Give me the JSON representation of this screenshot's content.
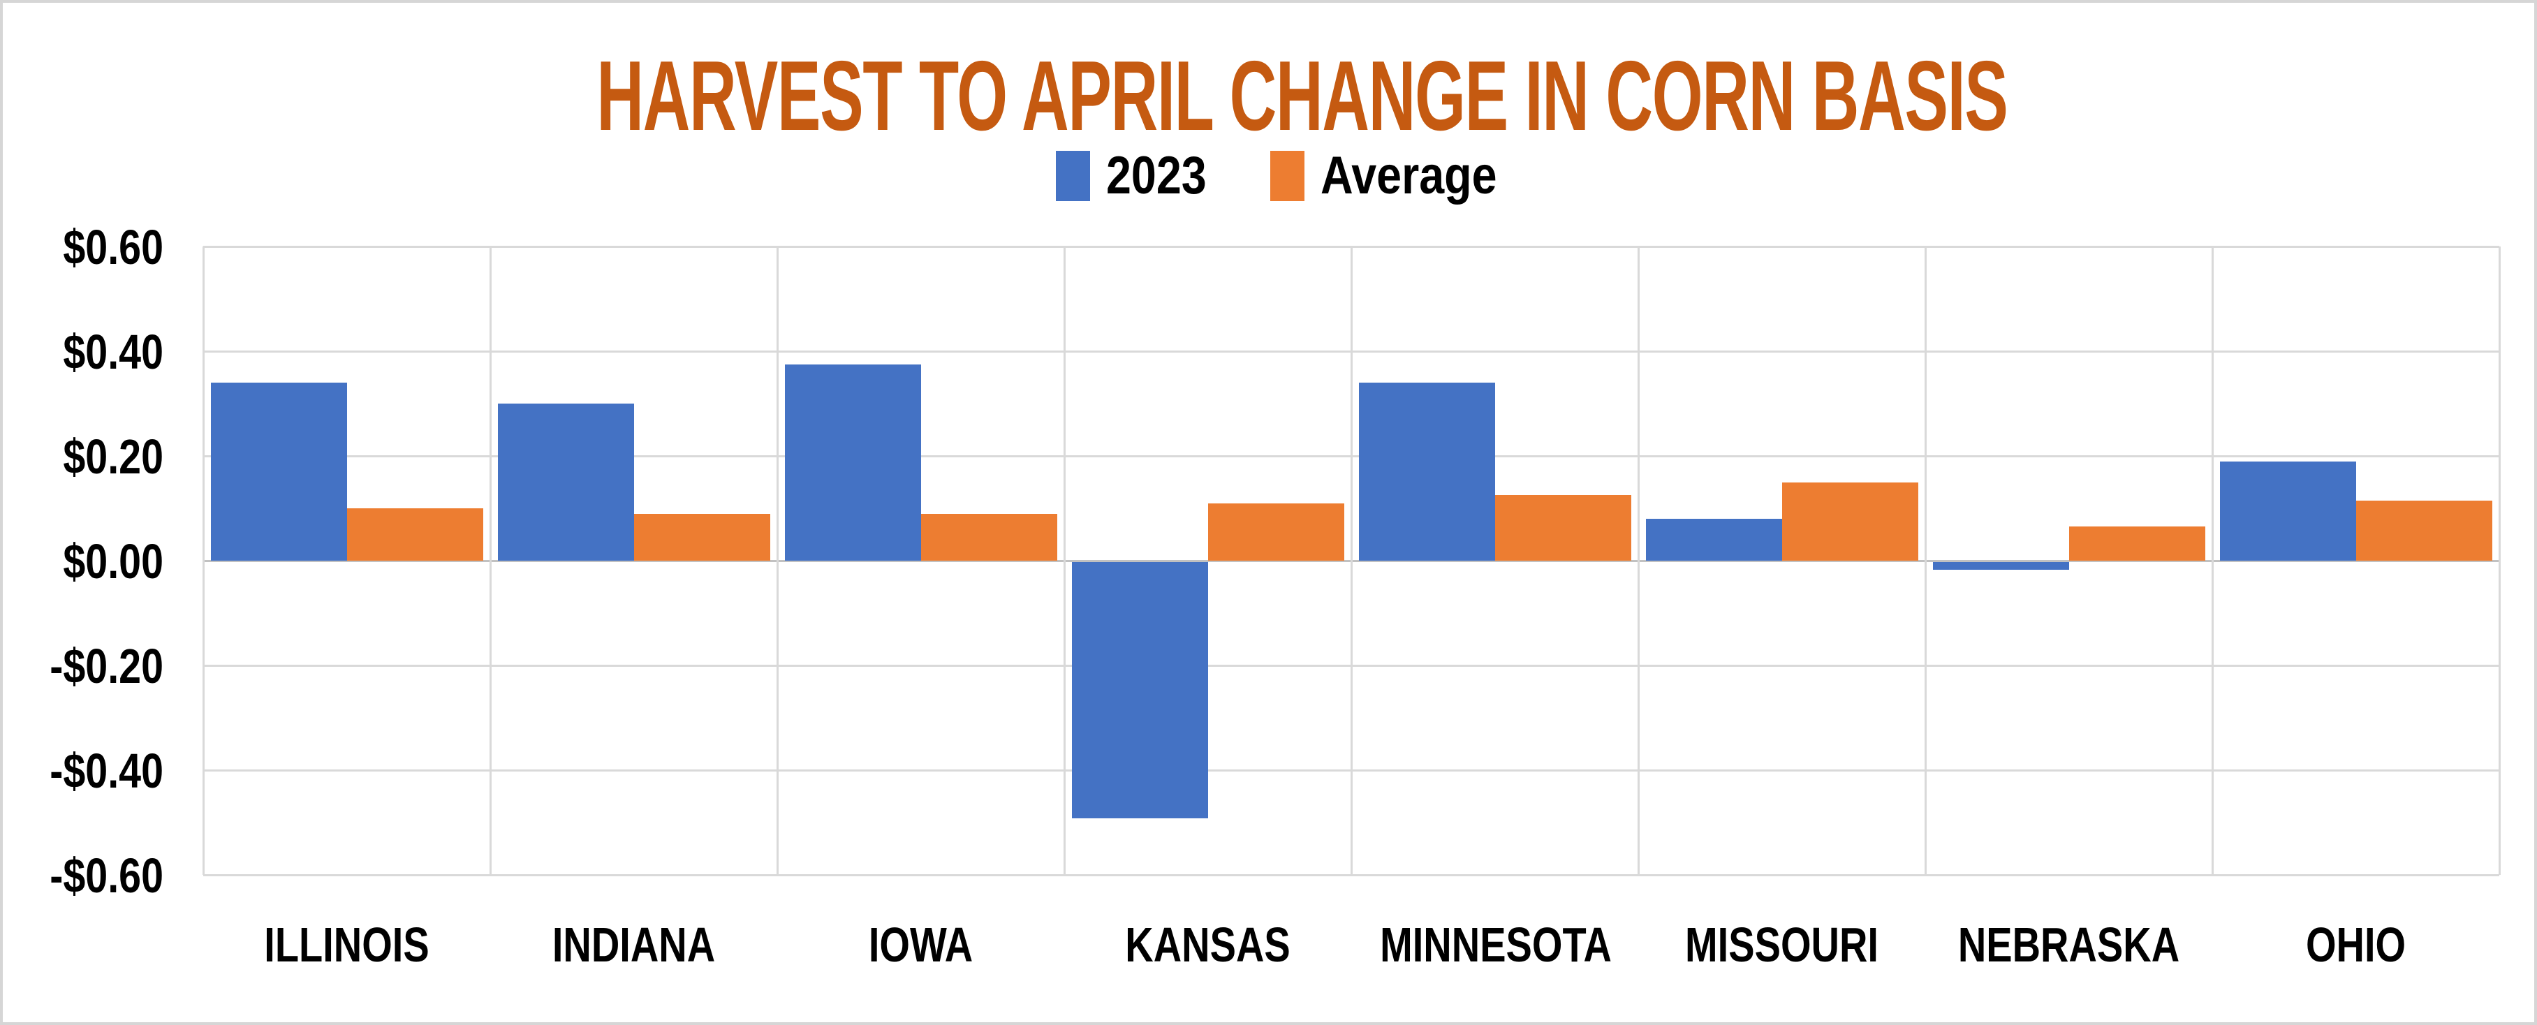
{
  "title": {
    "text": "HARVEST TO APRIL CHANGE IN CORN BASIS",
    "color": "#C55A11"
  },
  "legend": {
    "items": [
      {
        "label": "2023",
        "color": "#4472C4"
      },
      {
        "label": "Average",
        "color": "#ED7D31"
      }
    ],
    "position": "top-center"
  },
  "chart_data": {
    "type": "bar",
    "title": "HARVEST TO APRIL CHANGE IN CORN BASIS",
    "categories": [
      "ILLINOIS",
      "INDIANA",
      "IOWA",
      "KANSAS",
      "MINNESOTA",
      "MISSOURI",
      "NEBRASKA",
      "OHIO"
    ],
    "series": [
      {
        "name": "2023",
        "color": "#4472C4",
        "values": [
          0.34,
          0.3,
          0.375,
          -0.49,
          0.34,
          0.08,
          -0.015,
          0.19
        ]
      },
      {
        "name": "Average",
        "color": "#ED7D31",
        "values": [
          0.1,
          0.09,
          0.09,
          0.11,
          0.125,
          0.15,
          0.065,
          0.115
        ]
      }
    ],
    "xlabel": "",
    "ylabel": "",
    "ylim": [
      -0.6,
      0.6
    ],
    "ytick_step": 0.2,
    "yticks": [
      {
        "value": 0.6,
        "label": "$0.60"
      },
      {
        "value": 0.4,
        "label": "$0.40"
      },
      {
        "value": 0.2,
        "label": "$0.20"
      },
      {
        "value": 0.0,
        "label": "$0.00"
      },
      {
        "value": -0.2,
        "label": "-$0.20"
      },
      {
        "value": -0.4,
        "label": "-$0.40"
      },
      {
        "value": -0.6,
        "label": "-$0.60"
      }
    ],
    "grid": true,
    "legend_position": "top",
    "colors": {
      "title": "#C55A11",
      "axis_text": "#000000",
      "gridline": "#D9D9D9",
      "zero_line": "#C1C1C1",
      "frame_border": "#D6D6D6",
      "background": "#FFFFFF"
    }
  }
}
